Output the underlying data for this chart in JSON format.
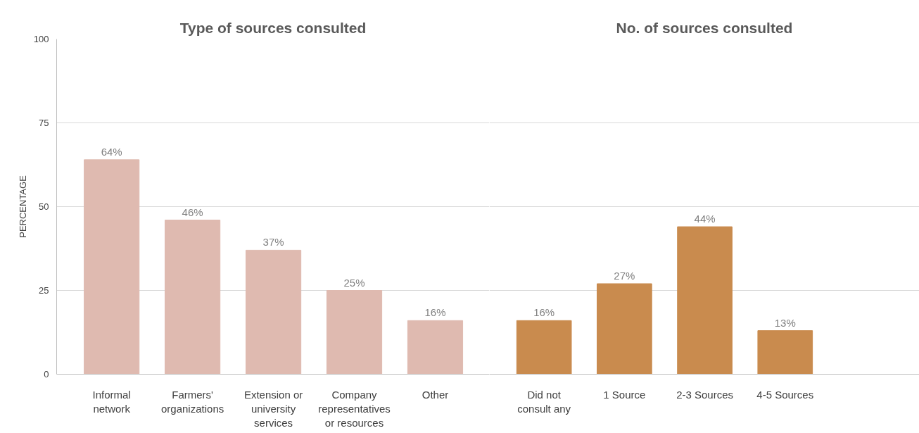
{
  "chart_data": [
    {
      "type": "bar",
      "title": "Type of sources consulted",
      "ylabel": "PERCENTAGE",
      "categories": [
        "Informal network",
        "Farmers' organizations",
        "Extension or university services",
        "Company representatives or resources",
        "Other"
      ],
      "values": [
        64,
        46,
        37,
        25,
        16
      ],
      "value_labels": [
        "64%",
        "46%",
        "37%",
        "25%",
        "16%"
      ],
      "color": "#dfbab0",
      "ylim": [
        0,
        100
      ],
      "yticks": [
        0,
        25,
        50,
        75,
        100
      ],
      "grid": "y"
    },
    {
      "type": "bar",
      "title": "No. of sources consulted",
      "categories": [
        "Did not consult any",
        "1 Source",
        "2-3 Sources",
        "4-5 Sources"
      ],
      "values": [
        16,
        27,
        44,
        13
      ],
      "value_labels": [
        "16%",
        "27%",
        "44%",
        "13%"
      ],
      "color": "#c98b4e",
      "ylim": [
        0,
        100
      ],
      "yticks": [
        0,
        25,
        50,
        75,
        100
      ],
      "grid": "y",
      "tick_labels": "x"
    }
  ]
}
